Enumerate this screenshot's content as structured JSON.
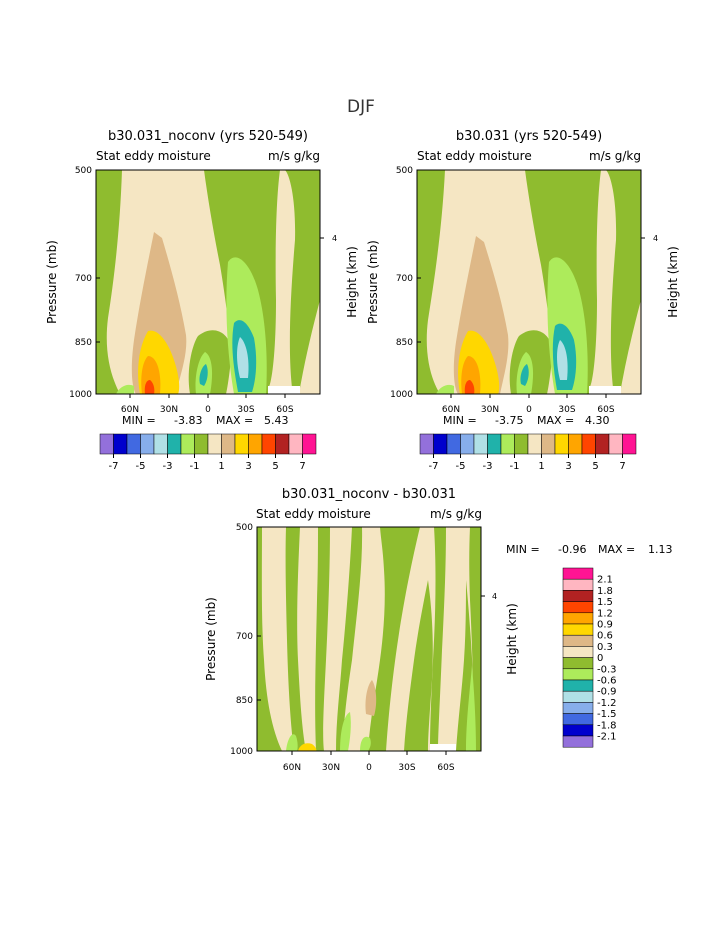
{
  "figure": {
    "season_title": "DJF"
  },
  "colors": {
    "c_-7": "#9370DB",
    "c_-6": "#0000CD",
    "c_-5": "#4169E1",
    "c_-4": "#87AEEB",
    "c_-3": "#B0E0E6",
    "c_-2": "#20B2AA",
    "c_-1": "#ADEB5B",
    "c_0": "#8FBC2F",
    "c_1": "#F5E6C3",
    "c_2": "#DEB887",
    "c_3": "#FFD700",
    "c_4": "#FFA500",
    "c_5": "#FF4500",
    "c_6": "#B22222",
    "c_7": "#FFB6C1",
    "c_8": "#FF1493"
  },
  "chart_data": [
    {
      "id": "panel1",
      "type": "contour",
      "title": "b30.031_noconv (yrs 520-549)",
      "subtitle_left": "Stat eddy moisture",
      "subtitle_right": "m/s g/kg",
      "ylabel_left": "Pressure (mb)",
      "ylabel_right": "Height (km)",
      "y_ticks": [
        "500",
        "700",
        "850",
        "1000"
      ],
      "right_tick": "4",
      "x_ticks": [
        "60N",
        "30N",
        "0",
        "30S",
        "60S"
      ],
      "min_label": "MIN =",
      "min_value": "-3.83",
      "max_label": "MAX =",
      "max_value": "5.43",
      "colorbar_labels": [
        "-7",
        "-5",
        "-3",
        "-1",
        "1",
        "3",
        "5",
        "7"
      ]
    },
    {
      "id": "panel2",
      "type": "contour",
      "title": "b30.031 (yrs 520-549)",
      "subtitle_left": "Stat eddy moisture",
      "subtitle_right": "m/s g/kg",
      "ylabel_left": "Pressure (mb)",
      "ylabel_right": "Height (km)",
      "y_ticks": [
        "500",
        "700",
        "850",
        "1000"
      ],
      "right_tick": "4",
      "x_ticks": [
        "60N",
        "30N",
        "0",
        "30S",
        "60S"
      ],
      "min_label": "MIN =",
      "min_value": "-3.75",
      "max_label": "MAX =",
      "max_value": "4.30",
      "colorbar_labels": [
        "-7",
        "-5",
        "-3",
        "-1",
        "1",
        "3",
        "5",
        "7"
      ]
    },
    {
      "id": "panel3",
      "type": "contour",
      "title": "b30.031_noconv - b30.031",
      "subtitle_left": "Stat eddy moisture",
      "subtitle_right": "m/s g/kg",
      "ylabel_left": "Pressure (mb)",
      "ylabel_right": "Height (km)",
      "y_ticks": [
        "500",
        "700",
        "850",
        "1000"
      ],
      "right_tick": "4",
      "x_ticks": [
        "60N",
        "30N",
        "0",
        "30S",
        "60S"
      ],
      "min_label": "MIN =",
      "min_value": "-0.96",
      "max_label": "MAX =",
      "max_value": "1.13",
      "colorbar_labels": [
        "2.1",
        "1.8",
        "1.5",
        "1.2",
        "0.9",
        "0.6",
        "0.3",
        "0",
        "-0.3",
        "-0.6",
        "-0.9",
        "-1.2",
        "-1.5",
        "-1.8",
        "-2.1"
      ]
    }
  ]
}
